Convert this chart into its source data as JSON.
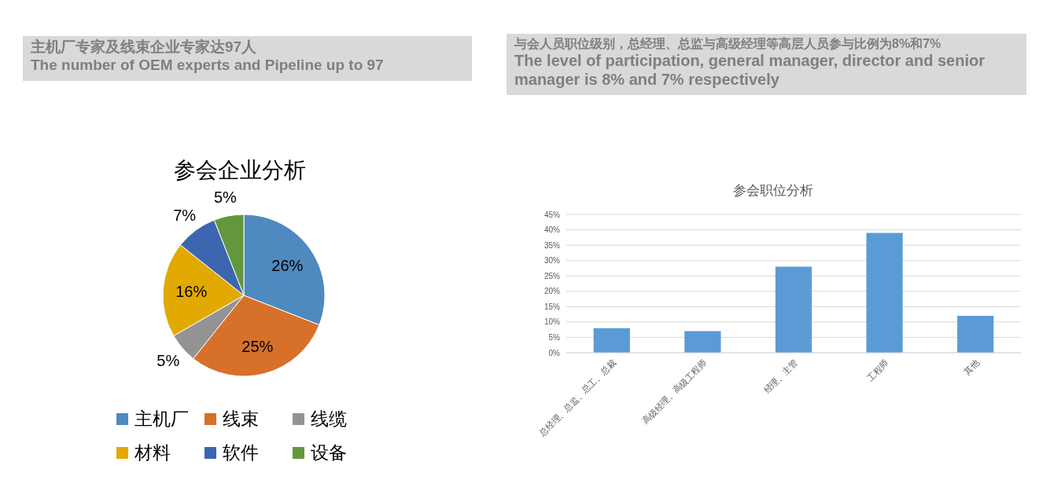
{
  "chart_data": [
    {
      "type": "pie",
      "title": "参会企业分析",
      "annotations": [
        "主机厂专家及线束企业专家达97人",
        "The number of OEM experts and Pipeline up to 97"
      ],
      "categories": [
        "主机厂",
        "线束",
        "线缆",
        "材料",
        "软件",
        "设备"
      ],
      "values": [
        26,
        25,
        5,
        16,
        7,
        5
      ],
      "colors": [
        "#4e89bf",
        "#d6702b",
        "#939393",
        "#e2a900",
        "#3c66af",
        "#62973d"
      ],
      "legend": "bottom",
      "value_labels": [
        "26%",
        "25%",
        "5%",
        "16%",
        "7%",
        "5%"
      ]
    },
    {
      "type": "bar",
      "title": "参会职位分析",
      "annotations": [
        "与会人员职位级别，总经理、总监与高级经理等高层人员参与比例为8%和7%",
        "The level of participation, general manager, director and senior manager is 8% and 7% respectively"
      ],
      "categories": [
        "总经理、总监、总工、总裁",
        "高级经理、高级工程师",
        "经理、主管",
        "工程师",
        "其他"
      ],
      "values": [
        8,
        7,
        28,
        39,
        12
      ],
      "color": "#5b9bd5",
      "ylim": [
        0,
        45
      ],
      "yticks": [
        {
          "value": 0,
          "label": "0%"
        },
        {
          "value": 5,
          "label": "5%"
        },
        {
          "value": 10,
          "label": "10%"
        },
        {
          "value": 15,
          "label": "15%"
        },
        {
          "value": 20,
          "label": "20%"
        },
        {
          "value": 25,
          "label": "25%"
        },
        {
          "value": 30,
          "label": "30%"
        },
        {
          "value": 35,
          "label": "35%"
        },
        {
          "value": 40,
          "label": "40%"
        },
        {
          "value": 45,
          "label": "45%"
        }
      ],
      "grid": "y"
    }
  ]
}
